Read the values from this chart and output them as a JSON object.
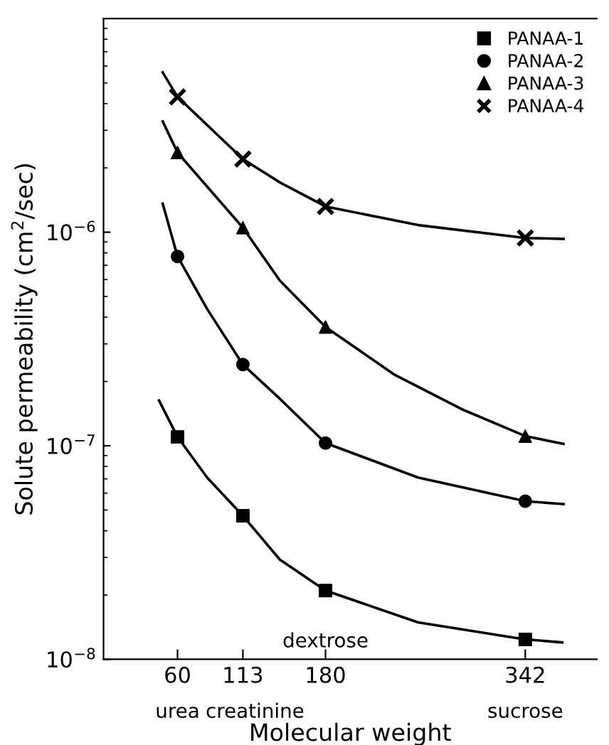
{
  "chart_data": {
    "type": "scatter",
    "xlabel": "Molecular weight",
    "ylabel": "Solute permeability (cm$^{2}$/sec)",
    "log": "y",
    "xlim": [
      0,
      400
    ],
    "ylim": [
      1e-08,
      1e-05
    ],
    "xticks": [
      60,
      113,
      180,
      342
    ],
    "yticks": [
      {
        "value": 1e-08,
        "label": "10$^{−8}$"
      },
      {
        "value": 1e-07,
        "label": "10$^{−7}$"
      },
      {
        "value": 1e-06,
        "label": "10$^{−6}$"
      }
    ],
    "grid": false,
    "legend": "top right",
    "x": [
      60,
      113,
      180,
      342
    ],
    "series": [
      {
        "name": "PANAA-1",
        "color": "#000000",
        "marker": "square",
        "values": [
          1.1e-07,
          4.7e-08,
          2.1e-08,
          1.24e-08
        ]
      },
      {
        "name": "PANAA-2",
        "color": "#000000",
        "marker": "circle",
        "values": [
          7.7e-07,
          2.4e-07,
          1.03e-07,
          5.5e-08
        ]
      },
      {
        "name": "PANAA-3",
        "color": "#000000",
        "marker": "triangle",
        "values": [
          2.36e-06,
          1.05e-06,
          3.6e-07,
          1.11e-07
        ]
      },
      {
        "name": "PANAA-4",
        "color": "#000000",
        "marker": "cross",
        "values": [
          4.3e-06,
          2.2e-06,
          1.32e-06,
          9.4e-07
        ]
      },
      {
        "type": "line",
        "color": "#000000",
        "line_style": "solid",
        "x": [
          45,
          60,
          84,
          113,
          143,
          180,
          255,
          342,
          372
        ],
        "values": [
          1.63e-07,
          1.1e-07,
          7.1e-08,
          4.7e-08,
          2.93e-08,
          2.1e-08,
          1.49e-08,
          1.24e-08,
          1.2e-08
        ]
      },
      {
        "type": "line",
        "color": "#000000",
        "line_style": "solid",
        "x": [
          48,
          60,
          84,
          113,
          143,
          180,
          255,
          342,
          373
        ],
        "values": [
          1.36e-06,
          7.7e-07,
          4.37e-07,
          2.4e-07,
          1.66e-07,
          1.03e-07,
          7.1e-08,
          5.5e-08,
          5.33e-08
        ]
      },
      {
        "type": "line",
        "color": "#000000",
        "line_style": "solid",
        "x": [
          48,
          60,
          113,
          143,
          180,
          236,
          292,
          342,
          373
        ],
        "values": [
          3.3e-06,
          2.36e-06,
          1.05e-06,
          5.93e-07,
          3.6e-07,
          2.15e-07,
          1.47e-07,
          1.11e-07,
          1.02e-07
        ]
      },
      {
        "type": "line",
        "color": "#000000",
        "line_style": "solid",
        "x": [
          48,
          60,
          113,
          143,
          180,
          255,
          342,
          373
        ],
        "values": [
          5.6e-06,
          4.3e-06,
          2.2e-06,
          1.71e-06,
          1.32e-06,
          1.08e-06,
          9.4e-07,
          9.3e-07
        ]
      }
    ],
    "annotations": [
      "urea",
      "creatinine",
      "dextrose",
      "sucrose"
    ]
  }
}
